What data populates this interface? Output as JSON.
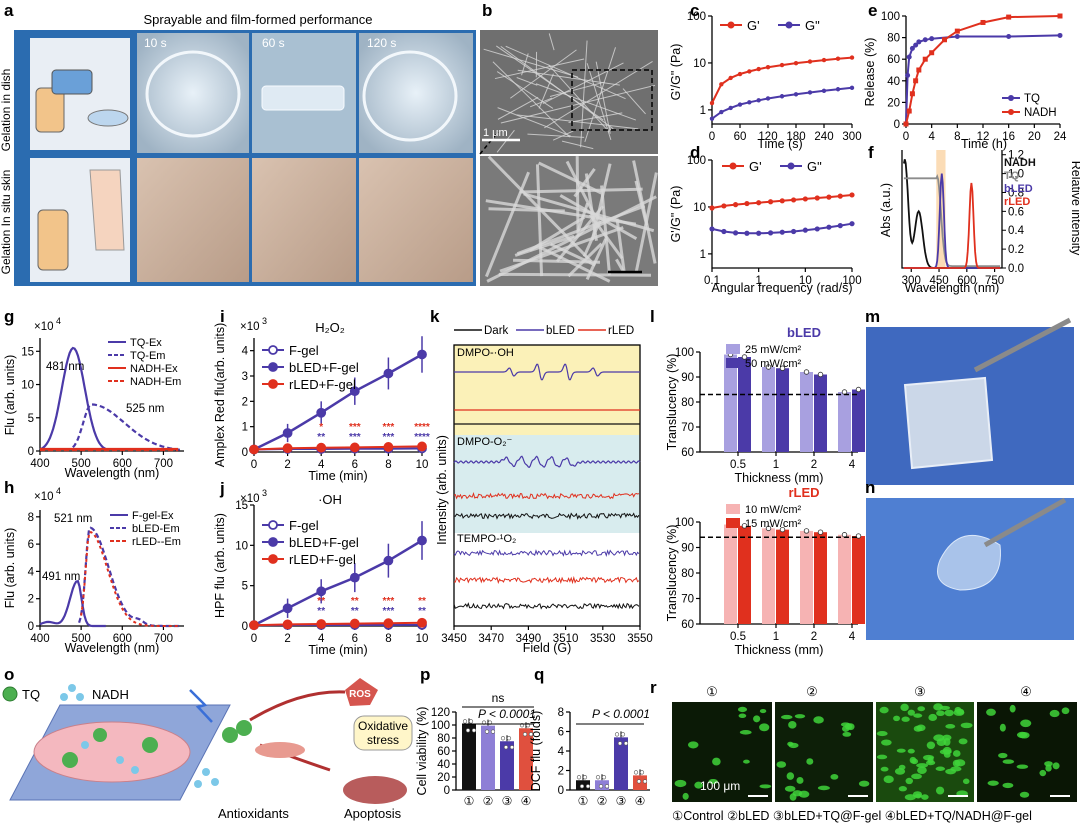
{
  "colors": {
    "purple": "#4b3aa8",
    "red": "#e0301e",
    "black": "#111111",
    "lightpurple": "#a8a0e0",
    "pink": "#f6b3b3",
    "gray": "#8c8c8c"
  },
  "panel_a": {
    "letter": "a",
    "title": "Sprayable and film-formed performance",
    "row_labels": [
      "Gelation in dish",
      "Gelation In situ skin"
    ],
    "times": [
      "10 s",
      "60 s",
      "120 s"
    ]
  },
  "panel_b": {
    "letter": "b",
    "scale": "1 μm"
  },
  "panel_m": {
    "letter": "m"
  },
  "panel_n": {
    "letter": "n"
  },
  "panel_o": {
    "letter": "o",
    "legend_tq": "TQ",
    "legend_nadh": "NADH",
    "ros": "ROS",
    "oxidative": [
      "Oxidative",
      "stress"
    ],
    "antioxidants": "Antioxidants",
    "apoptosis": "Apoptosis"
  },
  "panel_r": {
    "letter": "r",
    "labels": [
      "①",
      "②",
      "③",
      "④"
    ],
    "scale": "100 μm",
    "caption": "①Control ②bLED ③bLED+TQ@F-gel ④bLED+TQ/NADH@F-gel"
  },
  "chart_data": [
    {
      "panel": "c",
      "type": "line",
      "xlabel": "Time (s)",
      "ylabel": "G'/G\" (Pa)",
      "xticks": [
        0,
        60,
        120,
        180,
        240,
        300
      ],
      "yscale": "log",
      "yticks": [
        "1",
        "10",
        "100"
      ],
      "ylim": [
        0.5,
        100
      ],
      "series": [
        {
          "name": "G'",
          "color": "red",
          "x": [
            0,
            20,
            40,
            60,
            80,
            100,
            120,
            150,
            180,
            210,
            240,
            270,
            300
          ],
          "y": [
            1.4,
            3.5,
            4.8,
            5.8,
            6.6,
            7.4,
            8.1,
            9.0,
            9.9,
            10.7,
            11.5,
            12.3,
            13.0
          ]
        },
        {
          "name": "G\"",
          "color": "purple",
          "x": [
            0,
            20,
            40,
            60,
            80,
            100,
            120,
            150,
            180,
            210,
            240,
            270,
            300
          ],
          "y": [
            0.65,
            0.9,
            1.1,
            1.3,
            1.45,
            1.6,
            1.75,
            1.95,
            2.15,
            2.35,
            2.55,
            2.75,
            2.95
          ]
        }
      ]
    },
    {
      "panel": "d",
      "type": "line",
      "xlabel": "Angular frequency (rad/s)",
      "ylabel": "G'/G\" (Pa)",
      "xscale": "log",
      "xticks": [
        "0.1",
        "1",
        "10",
        "100"
      ],
      "yscale": "log",
      "yticks": [
        "1",
        "10",
        "100"
      ],
      "series": [
        {
          "name": "G'",
          "color": "red",
          "x": [
            0.1,
            0.18,
            0.32,
            0.56,
            1,
            1.8,
            3.2,
            5.6,
            10,
            18,
            32,
            56,
            100
          ],
          "y": [
            9.5,
            10.5,
            11.2,
            11.8,
            12.3,
            12.9,
            13.5,
            14.1,
            14.8,
            15.5,
            16.2,
            17.0,
            18.0
          ]
        },
        {
          "name": "G\"",
          "color": "purple",
          "x": [
            0.1,
            0.18,
            0.32,
            0.56,
            1,
            1.8,
            3.2,
            5.6,
            10,
            18,
            32,
            56,
            100
          ],
          "y": [
            3.4,
            3.0,
            2.8,
            2.75,
            2.75,
            2.8,
            2.9,
            3.0,
            3.2,
            3.4,
            3.7,
            4.0,
            4.4
          ]
        }
      ]
    },
    {
      "panel": "e",
      "type": "line",
      "xlabel": "Time (h)",
      "ylabel": "Release (%)",
      "xticks": [
        0,
        4,
        8,
        12,
        16,
        20,
        24
      ],
      "yticks": [
        0,
        20,
        40,
        60,
        80,
        100
      ],
      "ylim": [
        0,
        100
      ],
      "series": [
        {
          "name": "TQ",
          "color": "purple",
          "x": [
            0,
            0.25,
            0.5,
            1,
            1.5,
            2,
            3,
            4,
            8,
            16,
            24
          ],
          "y": [
            0,
            45,
            62,
            70,
            73,
            76,
            78,
            79,
            81,
            81,
            82
          ]
        },
        {
          "name": "NADH",
          "color": "red",
          "x": [
            0,
            0.5,
            1,
            1.5,
            2,
            3,
            4,
            6,
            8,
            12,
            16,
            24
          ],
          "y": [
            0,
            12,
            28,
            40,
            50,
            60,
            66,
            78,
            86,
            94,
            99,
            100
          ]
        }
      ]
    },
    {
      "panel": "f",
      "type": "line",
      "xlabel": "Wavelength (nm)",
      "ylabel": "Abs (a.u.)",
      "y2label": "Relative intensity",
      "xticks": [
        300,
        450,
        600,
        750
      ],
      "y2ticks": [
        "0.0",
        "0.2",
        "0.4",
        "0.6",
        "0.8",
        "1.0",
        "1.2"
      ],
      "series": [
        {
          "name": "NADH",
          "color": "black"
        },
        {
          "name": "TQ",
          "color": "gray"
        },
        {
          "name": "bLED",
          "color": "purple"
        },
        {
          "name": "rLED",
          "color": "red"
        }
      ]
    },
    {
      "panel": "g",
      "type": "line",
      "xlabel": "Wavelength (nm)",
      "ylabel": "Flu (arb. units)",
      "yunit": "×10",
      "yexp": "4",
      "xticks": [
        400,
        500,
        600,
        700
      ],
      "yticks": [
        0,
        5,
        10,
        15
      ],
      "annotations": [
        "481 nm",
        "525 nm"
      ],
      "series": [
        {
          "name": "TQ-Ex",
          "color": "purple",
          "style": "solid"
        },
        {
          "name": "TQ-Em",
          "color": "purple",
          "style": "dashed"
        },
        {
          "name": "NADH-Ex",
          "color": "red",
          "style": "solid"
        },
        {
          "name": "NADH-Em",
          "color": "red",
          "style": "dashed"
        }
      ]
    },
    {
      "panel": "h",
      "type": "line",
      "xlabel": "Wavelength (nm)",
      "ylabel": "Flu (arb. units)",
      "yunit": "×10",
      "yexp": "4",
      "xticks": [
        400,
        500,
        600,
        700
      ],
      "yticks": [
        0,
        2,
        4,
        6,
        8
      ],
      "annotations": [
        "521 nm",
        "491 nm"
      ],
      "series": [
        {
          "name": "F-gel-Ex",
          "color": "purple",
          "style": "solid"
        },
        {
          "name": "bLED-Em",
          "color": "purple",
          "style": "dashed"
        },
        {
          "name": "rLED--Em",
          "color": "red",
          "style": "dashed"
        }
      ]
    },
    {
      "panel": "i",
      "type": "line",
      "title": "H₂O₂",
      "xlabel": "Time (min)",
      "ylabel": "Amplex Red flu(arb. units)",
      "yunit": "×10",
      "yexp": "3",
      "xticks": [
        0,
        2,
        4,
        6,
        8,
        10
      ],
      "yticks": [
        0,
        1,
        2,
        3,
        4
      ],
      "series": [
        {
          "name": "F-gel",
          "x": [
            0,
            2,
            4,
            6,
            8,
            10
          ],
          "y": [
            0.1,
            0.12,
            0.12,
            0.13,
            0.13,
            0.14
          ]
        },
        {
          "name": "bLED+F-gel",
          "x": [
            0,
            2,
            4,
            6,
            8,
            10
          ],
          "y": [
            0.1,
            0.75,
            1.55,
            2.4,
            3.1,
            3.85
          ]
        },
        {
          "name": "rLED+F-gel",
          "x": [
            0,
            2,
            4,
            6,
            8,
            10
          ],
          "y": [
            0.1,
            0.15,
            0.17,
            0.18,
            0.2,
            0.22
          ]
        }
      ],
      "sig_red": [
        "*",
        "***",
        "***",
        "****"
      ],
      "sig_purple": [
        "**",
        "***",
        "***",
        "****"
      ]
    },
    {
      "panel": "j",
      "type": "line",
      "title": "·OH",
      "xlabel": "Time (min)",
      "ylabel": "HPF flu (arb. units)",
      "yunit": "×10",
      "yexp": "3",
      "xticks": [
        0,
        2,
        4,
        6,
        8,
        10
      ],
      "yticks": [
        0,
        5,
        10,
        15
      ],
      "series": [
        {
          "name": "F-gel",
          "x": [
            0,
            2,
            4,
            6,
            8,
            10
          ],
          "y": [
            0.1,
            0.12,
            0.12,
            0.13,
            0.13,
            0.14
          ]
        },
        {
          "name": "bLED+F-gel",
          "x": [
            0,
            2,
            4,
            6,
            8,
            10
          ],
          "y": [
            0.1,
            2.2,
            4.3,
            6.0,
            8.1,
            10.6
          ]
        },
        {
          "name": "rLED+F-gel",
          "x": [
            0,
            2,
            4,
            6,
            8,
            10
          ],
          "y": [
            0.1,
            0.2,
            0.25,
            0.3,
            0.35,
            0.4
          ]
        }
      ],
      "sig_red": [
        "**",
        "**",
        "***",
        "**"
      ],
      "sig_purple": [
        "**",
        "**",
        "***",
        "**"
      ]
    },
    {
      "panel": "k",
      "type": "line",
      "xlabel": "Field (G)",
      "ylabel": "Intensity (arb. units)",
      "xticks": [
        3450,
        3470,
        3490,
        3510,
        3530,
        3550
      ],
      "series": [
        {
          "name": "Dark",
          "color": "black"
        },
        {
          "name": "bLED",
          "color": "purple"
        },
        {
          "name": "rLED",
          "color": "red"
        }
      ],
      "labels": [
        "DMPO-·OH",
        "DMPO-O₂⁻",
        "TEMPO-¹O₂"
      ]
    },
    {
      "panel": "l",
      "type": "bar",
      "title": "bLED",
      "xlabel": "Thickness (mm)",
      "ylabel": "Translucency (%)",
      "categories": [
        "0.5",
        "1",
        "2",
        "4"
      ],
      "yticks": [
        60,
        70,
        80,
        90,
        100
      ],
      "ylim": [
        60,
        100
      ],
      "series": [
        {
          "name": "25 mW/cm²",
          "values": [
            99,
            94,
            92,
            84
          ]
        },
        {
          "name": "50 mW/cm²",
          "values": [
            98,
            93.5,
            91,
            85
          ]
        }
      ]
    },
    {
      "panel": "l2",
      "type": "bar",
      "title": "rLED",
      "xlabel": "Thickness (mm)",
      "ylabel": "Translucency (%)",
      "categories": [
        "0.5",
        "1",
        "2",
        "4"
      ],
      "yticks": [
        60,
        70,
        80,
        90,
        100
      ],
      "ylim": [
        60,
        100
      ],
      "series": [
        {
          "name": "10 mW/cm²",
          "values": [
            99,
            97.5,
            96.5,
            95
          ]
        },
        {
          "name": "15 mW/cm²",
          "values": [
            98.5,
            97,
            96,
            94.5
          ]
        }
      ]
    },
    {
      "panel": "p",
      "type": "bar",
      "ylabel": "Cell viability (%)",
      "categories": [
        "①",
        "②",
        "③",
        "④"
      ],
      "yticks": [
        0,
        20,
        40,
        60,
        80,
        100,
        120
      ],
      "values": [
        101,
        99,
        75,
        95
      ],
      "ns": "ns",
      "pvalue": "P < 0.0001"
    },
    {
      "panel": "q",
      "type": "bar",
      "ylabel": "DCF flu (folds)",
      "categories": [
        "①",
        "②",
        "③",
        "④"
      ],
      "yticks": [
        0,
        2,
        4,
        6,
        8
      ],
      "values": [
        1,
        1,
        5.4,
        1.5
      ],
      "pvalue": "P < 0.0001"
    }
  ]
}
